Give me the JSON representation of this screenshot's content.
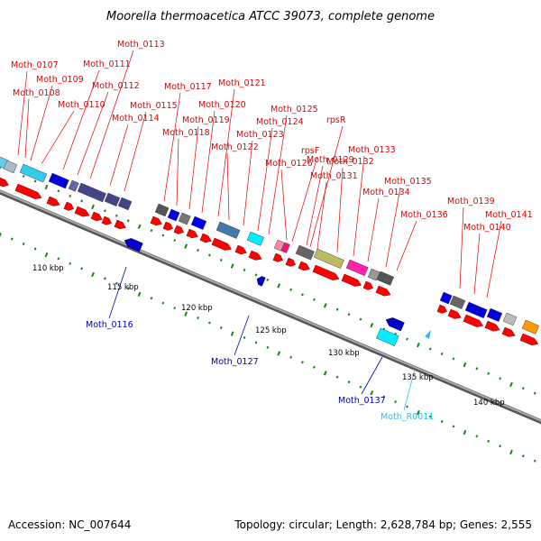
{
  "title": "Moorella thermoacetica ATCC 39073, complete genome",
  "footer": {
    "accession": "Accession: NC_007644",
    "summary": "Topology: circular; Length: 2,628,784 bp; Genes: 2,555"
  },
  "colors": {
    "forward_gene": "#ff0000",
    "reverse_gene": "#0000cc",
    "rna_gene": "#33bbee",
    "label_red": "#e00000",
    "label_blue": "#000099",
    "label_cyan": "#33bbee",
    "tick": "#118811",
    "backbone": "#888888"
  },
  "ruler_labels": [
    "110 kbp",
    "115 kbp",
    "120 kbp",
    "125 kbp",
    "130 kbp",
    "135 kbp",
    "140 kbp"
  ],
  "top_labels": [
    "Moth_0107",
    "Moth_0108",
    "Moth_0109",
    "Moth_0110",
    "Moth_0111",
    "Moth_0112",
    "Moth_0113",
    "Moth_0114",
    "Moth_0115",
    "Moth_0117",
    "Moth_0118",
    "Moth_0119",
    "Moth_0120",
    "Moth_0121",
    "Moth_0122",
    "Moth_0123",
    "Moth_0124",
    "Moth_0125",
    "Moth_0126",
    "rpsF",
    "Moth_0129",
    "rpsR",
    "Moth_0131",
    "Moth_0132",
    "Moth_0133",
    "Moth_0134",
    "Moth_0135",
    "Moth_0136",
    "Moth_0139",
    "Moth_0140",
    "Moth_0141"
  ],
  "bottom_labels": [
    "Moth_0116",
    "Moth_0127",
    "Moth_0137",
    "Moth_R0011"
  ]
}
